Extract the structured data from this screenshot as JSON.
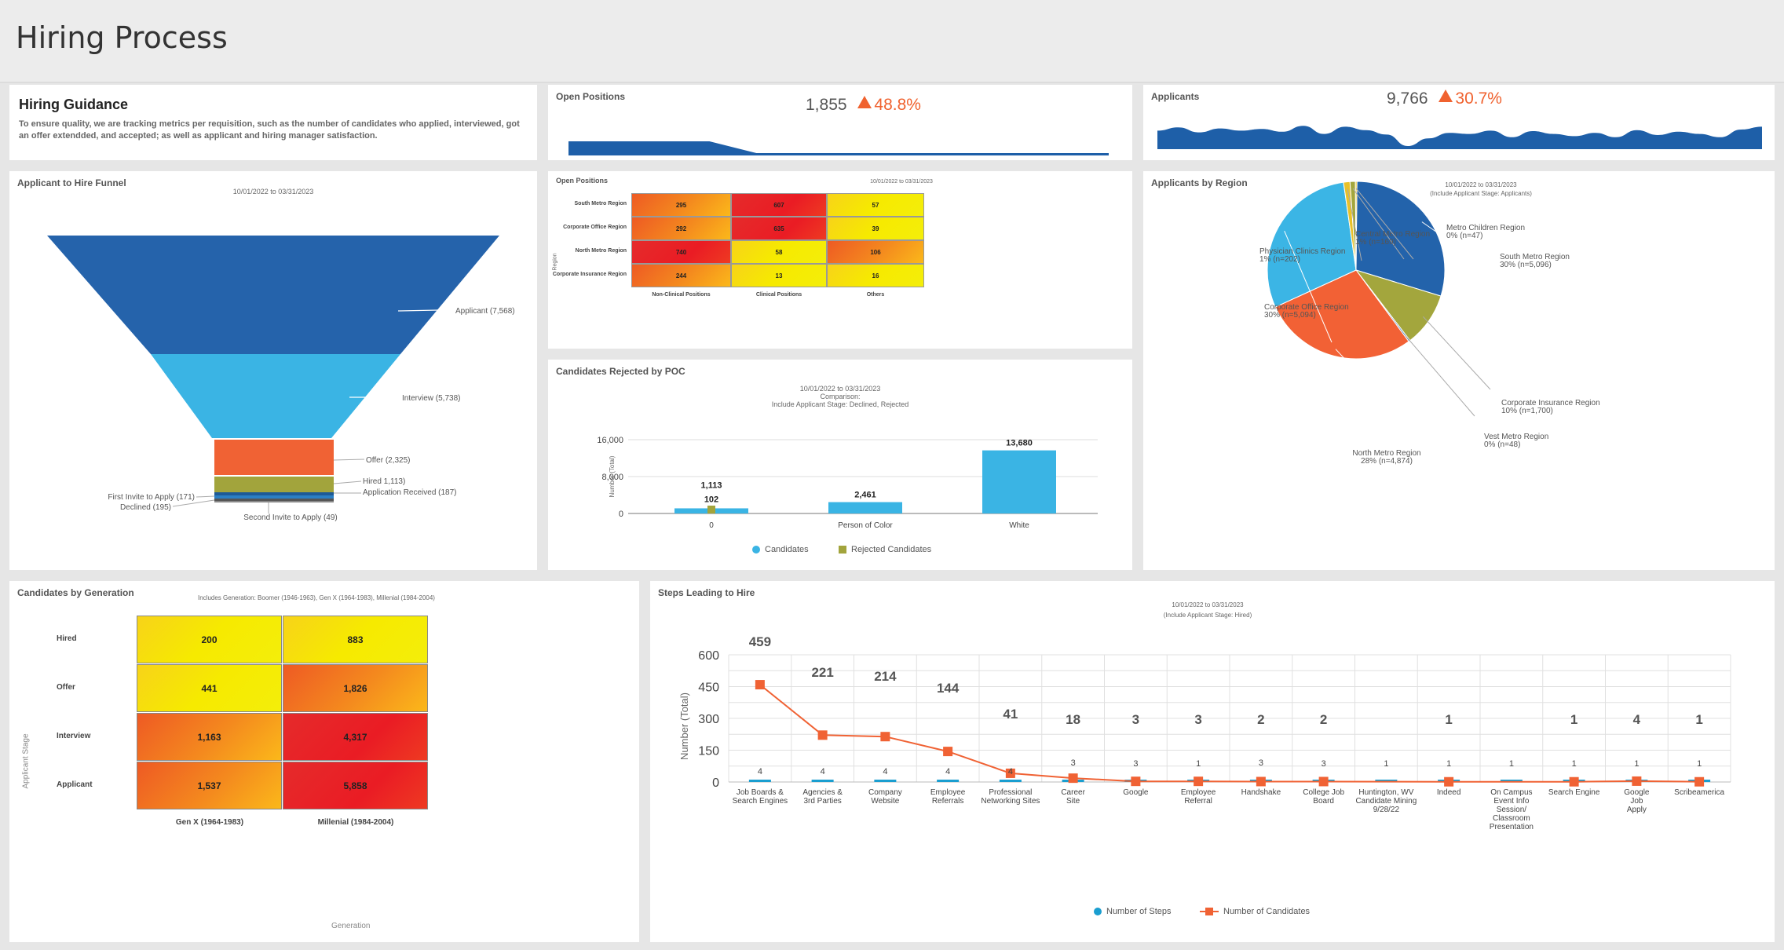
{
  "page": {
    "title": "Hiring Process"
  },
  "guidance": {
    "title": "Hiring Guidance",
    "text": "To ensure quality, we are tracking metrics per requisition, such as the number of candidates who applied, interviewed, got an offer extendded, and accepted; as well as applicant and hiring manager satisfaction."
  },
  "open_positions_kpi": {
    "title": "Open Positions",
    "value": "1,855",
    "change": "48.8%",
    "trend": [
      100,
      100,
      100,
      100,
      100,
      100,
      100,
      50,
      0,
      0,
      0,
      0,
      0,
      0,
      0,
      0,
      0,
      0,
      0,
      0,
      0,
      0,
      0,
      0
    ]
  },
  "applicants_kpi": {
    "title": "Applicants",
    "value": "9,766",
    "change": "30.7%",
    "trend": [
      70,
      85,
      62,
      80,
      70,
      78,
      65,
      92,
      55,
      88,
      72,
      52,
      0,
      35,
      60,
      55,
      70,
      40,
      68,
      55,
      45,
      60,
      40,
      72,
      50,
      65,
      55,
      40,
      75,
      88
    ]
  },
  "funnel": {
    "title": "Applicant to Hire Funnel",
    "date_range": "10/01/2022 to 03/31/2023",
    "labels": {
      "applicant": "Applicant (7,568)",
      "interview": "Interview (5,738)",
      "offer": "Offer (2,325)",
      "hired": "Hired 1,113)",
      "application_received": "Application Received (187)",
      "first_invite": "First Invite to Apply (171)",
      "declined": "Declined (195)",
      "second_invite": "Second Invite to Apply (49)"
    },
    "colors": {
      "applicant": "#2563ab",
      "interview": "#3ab4e4",
      "offer": "#f06234",
      "hired": "#a2a43c",
      "application_received": "#1e5a96",
      "first_invite": "#2b7fc4",
      "declined": "#555555",
      "second_invite": "#888888"
    }
  },
  "open_positions_heatmap": {
    "title": "Open Positions",
    "date_range": "10/01/2022 to 03/31/2023",
    "y_axis_label": "Region",
    "rows": [
      "South Metro Region",
      "Corporate Office Region",
      "North Metro Region",
      "Corporate Insurance Region"
    ],
    "columns": [
      "Non-Clinical Positions",
      "Clinical Positions",
      "Others"
    ],
    "values": [
      [
        "295",
        "607",
        "57"
      ],
      [
        "292",
        "635",
        "39"
      ],
      [
        "740",
        "58",
        "106"
      ],
      [
        "244",
        "13",
        "16"
      ]
    ],
    "levels": [
      [
        "mid",
        "high",
        "low"
      ],
      [
        "mid",
        "high",
        "low"
      ],
      [
        "high",
        "low",
        "mid"
      ],
      [
        "mid",
        "low",
        "low"
      ]
    ]
  },
  "rejected_chart": {
    "title": "Candidates Rejected by POC",
    "subtitle": [
      "10/01/2022 to 03/31/2023",
      "Comparison:",
      "Include Applicant Stage: Declined, Rejected"
    ],
    "chart_data": {
      "type": "bar",
      "categories": [
        "0",
        "Person of Color",
        "White"
      ],
      "series": [
        {
          "name": "Candidates",
          "values": [
            1113,
            2461,
            13680
          ],
          "labels": [
            "1,113",
            "2,461",
            "13,680"
          ],
          "color": "#3ab4e4"
        },
        {
          "name": "Rejected Candidates",
          "values": [
            102,
            0,
            0
          ],
          "labels": [
            "102",
            "",
            ""
          ],
          "color": "#a2a43c"
        }
      ],
      "ylabel": "Number (Total)",
      "ylim": [
        0,
        16000
      ],
      "yticks": [
        "0",
        "8,000",
        "16,000"
      ]
    }
  },
  "region_pie": {
    "title": "Applicants by Region",
    "subtitle": [
      "10/01/2022 to 03/31/2023",
      "(Include Applicant Stage: Applicants)"
    ],
    "chart_data": {
      "type": "pie",
      "slices": [
        {
          "name": "South Metro Region",
          "label": "30% (n=5,096)",
          "value": 5096,
          "color": "#2363ab"
        },
        {
          "name": "Corporate Insurance Region",
          "label": "10% (n=1,700)",
          "value": 1700,
          "color": "#a3a63d"
        },
        {
          "name": "Vest Metro Region",
          "label": "0% (n=48)",
          "value": 48,
          "color": "#2e6fb3"
        },
        {
          "name": "North Metro Region",
          "label": "28% (n=4,874)",
          "value": 4874,
          "color": "#f26135"
        },
        {
          "name": "Corporate Office Region",
          "label": "30% (n=5,094)",
          "value": 5094,
          "color": "#3bb5e5"
        },
        {
          "name": "Physician Clinics Region",
          "label": "1% (n=202)",
          "value": 202,
          "color": "#e8c12a"
        },
        {
          "name": "Central Metro Region",
          "label": "1% (n=169)",
          "value": 169,
          "color": "#a3a63d"
        },
        {
          "name": "Metro Children Region",
          "label": "0% (n=47)",
          "value": 47,
          "color": "#f0c828"
        }
      ]
    }
  },
  "generation_heatmap": {
    "title": "Candidates by Generation",
    "subtitle": "Includes Generation: Boomer (1946-1963), Gen X (1964-1983), Millenial (1984-2004)",
    "y_axis_label": "Applicant Stage",
    "x_axis_label": "Generation",
    "rows": [
      "Hired",
      "Offer",
      "Interview",
      "Applicant"
    ],
    "columns": [
      "Gen X (1964-1983)",
      "Millenial (1984-2004)"
    ],
    "values": [
      [
        "200",
        "883"
      ],
      [
        "441",
        "1,826"
      ],
      [
        "1,163",
        "4,317"
      ],
      [
        "1,537",
        "5,858"
      ]
    ],
    "levels": [
      [
        "low",
        "low"
      ],
      [
        "low",
        "mid"
      ],
      [
        "mid",
        "high"
      ],
      [
        "mid",
        "high"
      ]
    ]
  },
  "steps_chart": {
    "title": "Steps Leading to Hire",
    "subtitle": [
      "10/01/2022 to 03/31/2023",
      "(Include Applicant Stage: Hired)"
    ],
    "chart_data": {
      "type": "line",
      "categories": [
        "Job Boards & Search Engines",
        "Agencies & 3rd Parties",
        "Company Website",
        "Employee Referrals",
        "Professional Networking Sites",
        "Career Site",
        "Google",
        "Employee Referral",
        "Handshake",
        "College Job Board",
        "Huntington, WV Candidate Mining 9/28/22",
        "Indeed",
        "On Campus Event Info Session/ Classroom Presentation",
        "Search Engine",
        "Google Job Apply",
        "Scribeamerica"
      ],
      "series": [
        {
          "name": "Number of Steps",
          "values": [
            4,
            4,
            4,
            4,
            4,
            3,
            3,
            1,
            3,
            3,
            1,
            1,
            1,
            1,
            1,
            1
          ],
          "color": "#1a9ed0"
        },
        {
          "name": "Number of Candidates",
          "values": [
            459,
            221,
            214,
            144,
            41,
            18,
            3,
            3,
            2,
            2,
            null,
            1,
            null,
            1,
            4,
            1
          ],
          "color": "#f06234"
        }
      ],
      "ylabel": "Number (Total)",
      "ylim": [
        0,
        600
      ],
      "yticks": [
        "0",
        "150",
        "300",
        "450",
        "600"
      ]
    }
  }
}
